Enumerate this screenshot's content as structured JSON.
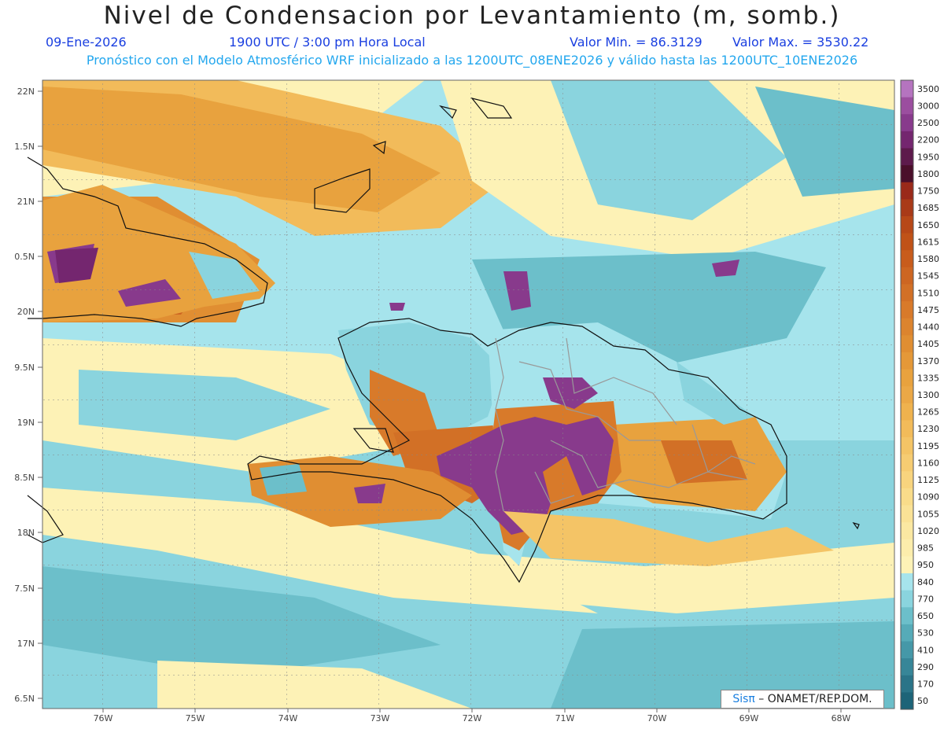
{
  "header": {
    "title": "Nivel de Condensacion por Levantamiento (m, somb.)",
    "date": "09-Ene-2026",
    "time": "1900 UTC / 3:00 pm Hora Local",
    "min_label": "Valor Min. = 86.3129",
    "max_label": "Valor Max. = 3530.22",
    "forecast_note": "Pronóstico con el Modelo Atmosférico WRF inicializado a las 1200UTC_08ENE2026 y válido hasta las  1200UTC_10ENE2026"
  },
  "axes": {
    "lat_labels": [
      "22N",
      "1.5N",
      "21N",
      "0.5N",
      "20N",
      "9.5N",
      "19N",
      "8.5N",
      "18N",
      "7.5N",
      "17N",
      "6.5N"
    ],
    "lon_labels": [
      "76W",
      "75W",
      "74W",
      "73W",
      "72W",
      "71W",
      "70W",
      "69W",
      "68W"
    ]
  },
  "legend": {
    "levels": [
      "3500",
      "3000",
      "2500",
      "2200",
      "1950",
      "1800",
      "1750",
      "1685",
      "1650",
      "1615",
      "1580",
      "1545",
      "1510",
      "1475",
      "1440",
      "1405",
      "1370",
      "1335",
      "1300",
      "1265",
      "1230",
      "1195",
      "1160",
      "1125",
      "1090",
      "1055",
      "1020",
      "985",
      "950",
      "840",
      "770",
      "650",
      "530",
      "410",
      "290",
      "170",
      "50"
    ],
    "colors": [
      "#b574bf",
      "#9b4e9f",
      "#883a8c",
      "#74266f",
      "#5d1a4b",
      "#4a0f2a",
      "#9a2a1a",
      "#a93a18",
      "#b74818",
      "#c05218",
      "#c85c1c",
      "#cd6622",
      "#d27026",
      "#d87a2a",
      "#dc842e",
      "#e08e32",
      "#e49838",
      "#e8a23e",
      "#eba846",
      "#efb24e",
      "#f2bb5a",
      "#f4c466",
      "#f6cc72",
      "#f8d47e",
      "#f9dc8a",
      "#fae296",
      "#fbe8a2",
      "#fcedac",
      "#fdf2b6",
      "#a6e4ec",
      "#8ad4de",
      "#6cbfca",
      "#56abb8",
      "#4598a8",
      "#378698",
      "#2a7488",
      "#1d6478"
    ]
  },
  "credit": {
    "sis": "Sisπ",
    "org": " – ONAMET/REP.DOM."
  }
}
